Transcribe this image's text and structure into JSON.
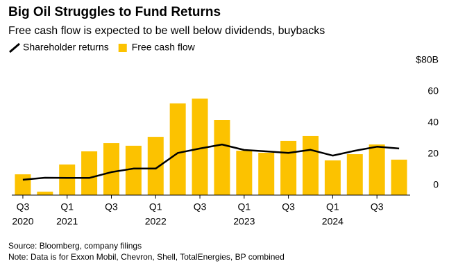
{
  "chart_data": {
    "type": "bar_line",
    "title": "Big Oil Struggles to Fund Returns",
    "subtitle": "Free cash flow is expected to be well below dividends, buybacks",
    "categories": [
      "Q3",
      null,
      "Q1",
      null,
      "Q3",
      null,
      "Q1",
      null,
      "Q3",
      null,
      "Q1",
      null,
      "Q3",
      null,
      "Q1",
      null,
      "Q3",
      null
    ],
    "category_years": [
      "2020",
      null,
      "2021",
      null,
      null,
      null,
      "2022",
      null,
      null,
      null,
      "2023",
      null,
      null,
      null,
      "2024",
      null,
      null,
      null
    ],
    "series": [
      {
        "name": "Shareholder returns",
        "type": "line",
        "color": "#000000",
        "values": [
          9.8,
          11.1,
          11,
          11,
          14.7,
          17,
          17,
          27,
          29.8,
          32.4,
          28.9,
          28,
          27,
          29,
          25.3,
          28.4,
          31,
          29.8
        ]
      },
      {
        "name": "Free cash flow",
        "type": "bar",
        "color": "#fcc200",
        "values": [
          13.3,
          2.2,
          19.6,
          28,
          33.3,
          31.6,
          37.3,
          58.7,
          61.8,
          48,
          28.4,
          27.1,
          34.7,
          37.8,
          22.2,
          26.2,
          32.4,
          22.7
        ]
      }
    ],
    "ylim": [
      0,
      80
    ],
    "yticks": [
      0,
      20,
      40,
      60,
      {
        "value": 80,
        "label": "$80B"
      }
    ],
    "grid": false,
    "source": "Source: Bloomberg, company filings",
    "note": "Note: Data is for Exxon Mobil, Chevron, Shell, TotalEnergies, BP combined"
  }
}
